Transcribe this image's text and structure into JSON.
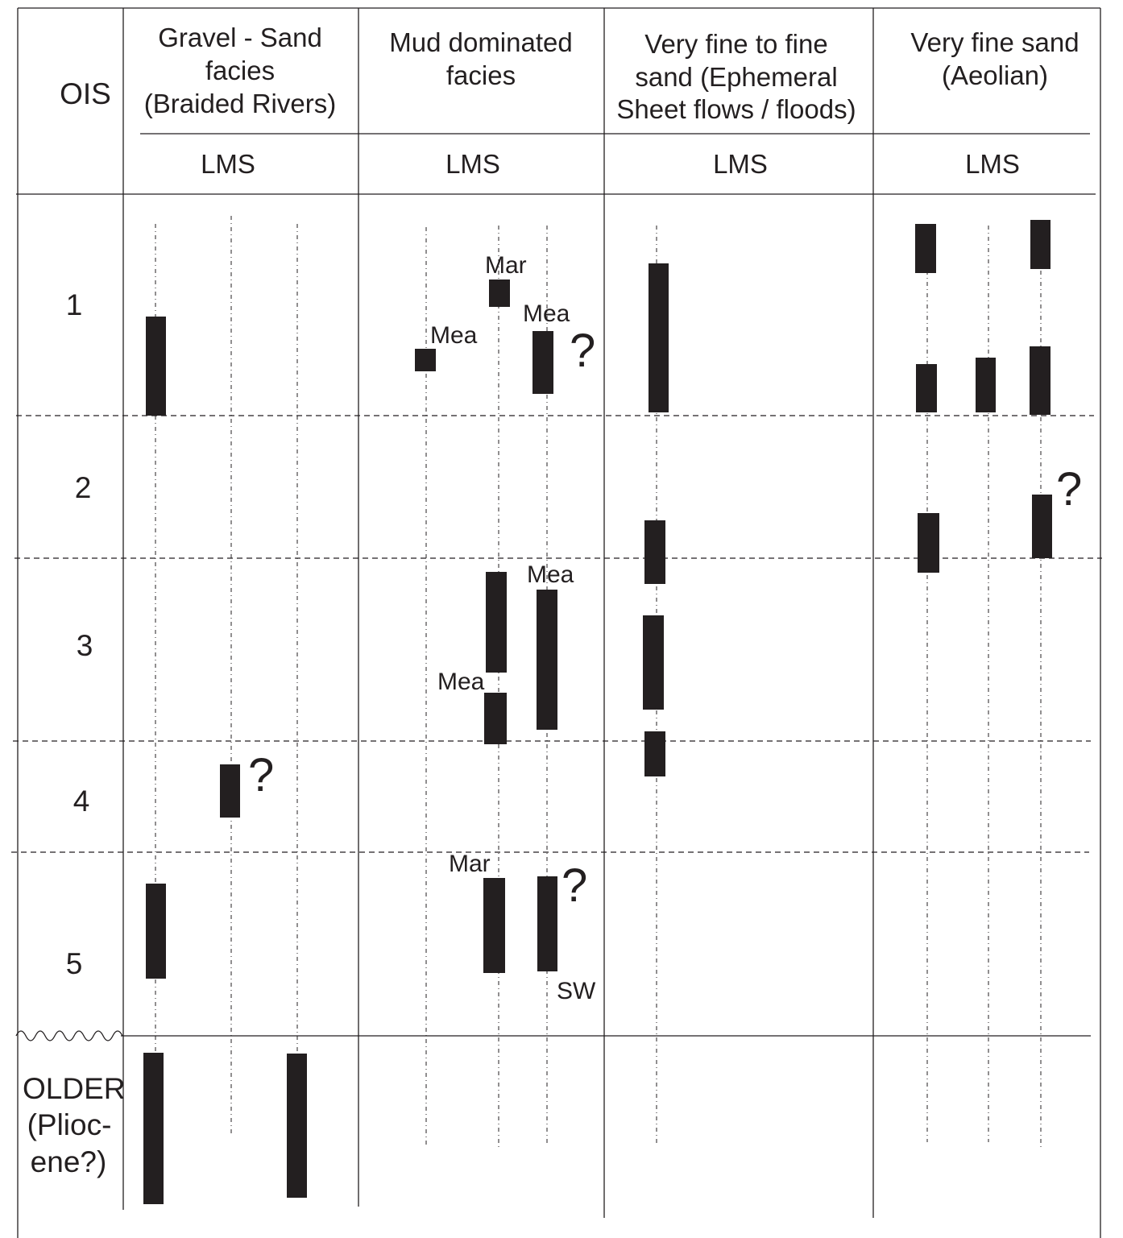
{
  "header": {
    "ois_label": "OIS",
    "sub_label": "LMS",
    "columns": [
      {
        "lines": [
          "Gravel - Sand",
          "facies",
          "(Braided Rivers)"
        ]
      },
      {
        "lines": [
          "Mud dominated",
          "facies"
        ]
      },
      {
        "lines": [
          "Very fine to fine",
          "sand (Ephemeral",
          "Sheet flows / floods)"
        ]
      },
      {
        "lines": [
          "Very fine sand",
          "(Aeolian)"
        ]
      }
    ]
  },
  "rows": [
    {
      "lines": [
        "1"
      ]
    },
    {
      "lines": [
        "2"
      ]
    },
    {
      "lines": [
        "3"
      ]
    },
    {
      "lines": [
        "4"
      ]
    },
    {
      "lines": [
        "5"
      ]
    },
    {
      "lines": [
        "OLDER",
        "(Plioc-",
        "ene?)"
      ]
    }
  ],
  "annotations": {
    "mar": "Mar",
    "mea": "Mea",
    "sw": "SW",
    "question": "?"
  }
}
